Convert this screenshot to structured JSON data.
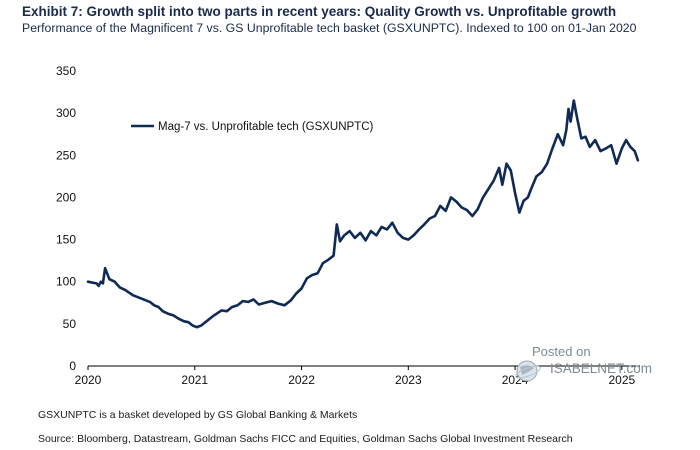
{
  "header": {
    "title": "Exhibit 7: Growth split into two parts in recent years: Quality Growth vs. Unprofitable growth",
    "subtitle": "Performance of the Magnificent 7 vs. GS Unprofitable tech basket (GSXUNPTC). Indexed to 100 on 01-Jan 2020"
  },
  "footer": {
    "note": "GSXUNPTC is a basket developed by GS Global Banking & Markets",
    "source": "Source: Bloomberg, Datastream, Goldman Sachs FICC and Equities, Goldman Sachs Global Investment Research"
  },
  "watermark": {
    "posted": "Posted on",
    "brand": "ISABELNET.com"
  },
  "colors": {
    "line": "#0f2a55",
    "title": "#1a2b4a",
    "watermark": "#7f8a96"
  },
  "chart_data": {
    "type": "line",
    "title": "Exhibit 7: Growth split into two parts in recent years: Quality Growth vs. Unprofitable growth",
    "xlabel": "",
    "ylabel": "",
    "xlim": [
      2020.0,
      2025.17
    ],
    "ylim": [
      0,
      350
    ],
    "x_ticks": [
      "2020",
      "2021",
      "2022",
      "2023",
      "2024",
      "2025"
    ],
    "y_ticks": [
      0,
      50,
      100,
      150,
      200,
      250,
      300,
      350
    ],
    "grid": false,
    "legend_position": "top-left",
    "series": [
      {
        "name": "Mag-7 vs. Unprofitable tech (GSXUNPTC)",
        "x": [
          2020.0,
          2020.04,
          2020.08,
          2020.1,
          2020.12,
          2020.14,
          2020.16,
          2020.2,
          2020.25,
          2020.3,
          2020.35,
          2020.42,
          2020.5,
          2020.58,
          2020.62,
          2020.66,
          2020.7,
          2020.75,
          2020.8,
          2020.85,
          2020.9,
          2020.94,
          2020.98,
          2021.02,
          2021.06,
          2021.1,
          2021.13,
          2021.18,
          2021.25,
          2021.3,
          2021.35,
          2021.4,
          2021.45,
          2021.5,
          2021.55,
          2021.6,
          2021.66,
          2021.72,
          2021.78,
          2021.84,
          2021.9,
          2021.95,
          2022.0,
          2022.05,
          2022.1,
          2022.15,
          2022.2,
          2022.25,
          2022.3,
          2022.33,
          2022.36,
          2022.4,
          2022.45,
          2022.5,
          2022.55,
          2022.6,
          2022.65,
          2022.7,
          2022.75,
          2022.8,
          2022.85,
          2022.9,
          2022.95,
          2023.0,
          2023.05,
          2023.1,
          2023.15,
          2023.2,
          2023.25,
          2023.3,
          2023.35,
          2023.4,
          2023.45,
          2023.5,
          2023.55,
          2023.6,
          2023.65,
          2023.7,
          2023.75,
          2023.8,
          2023.85,
          2023.88,
          2023.92,
          2023.96,
          2024.0,
          2024.04,
          2024.08,
          2024.12,
          2024.15,
          2024.2,
          2024.25,
          2024.3,
          2024.35,
          2024.4,
          2024.45,
          2024.48,
          2024.5,
          2024.52,
          2024.55,
          2024.58,
          2024.62,
          2024.66,
          2024.7,
          2024.75,
          2024.8,
          2024.85,
          2024.9,
          2024.95,
          2025.0,
          2025.04,
          2025.08,
          2025.12,
          2025.15
        ],
        "values": [
          100,
          99,
          98,
          95,
          100,
          98,
          116,
          103,
          100,
          93,
          90,
          84,
          80,
          76,
          72,
          70,
          65,
          62,
          60,
          56,
          53,
          52,
          48,
          46,
          48,
          52,
          55,
          60,
          66,
          65,
          70,
          72,
          77,
          76,
          79,
          73,
          75,
          77,
          74,
          72,
          78,
          86,
          92,
          104,
          108,
          110,
          122,
          126,
          131,
          168,
          148,
          155,
          160,
          152,
          158,
          149,
          160,
          155,
          165,
          162,
          170,
          158,
          152,
          150,
          155,
          162,
          168,
          175,
          178,
          190,
          184,
          200,
          195,
          188,
          185,
          178,
          186,
          200,
          210,
          220,
          235,
          215,
          240,
          232,
          205,
          182,
          196,
          200,
          210,
          225,
          230,
          240,
          258,
          275,
          262,
          280,
          305,
          290,
          315,
          295,
          270,
          272,
          260,
          268,
          255,
          258,
          262,
          240,
          258,
          268,
          260,
          255,
          244
        ]
      }
    ]
  }
}
